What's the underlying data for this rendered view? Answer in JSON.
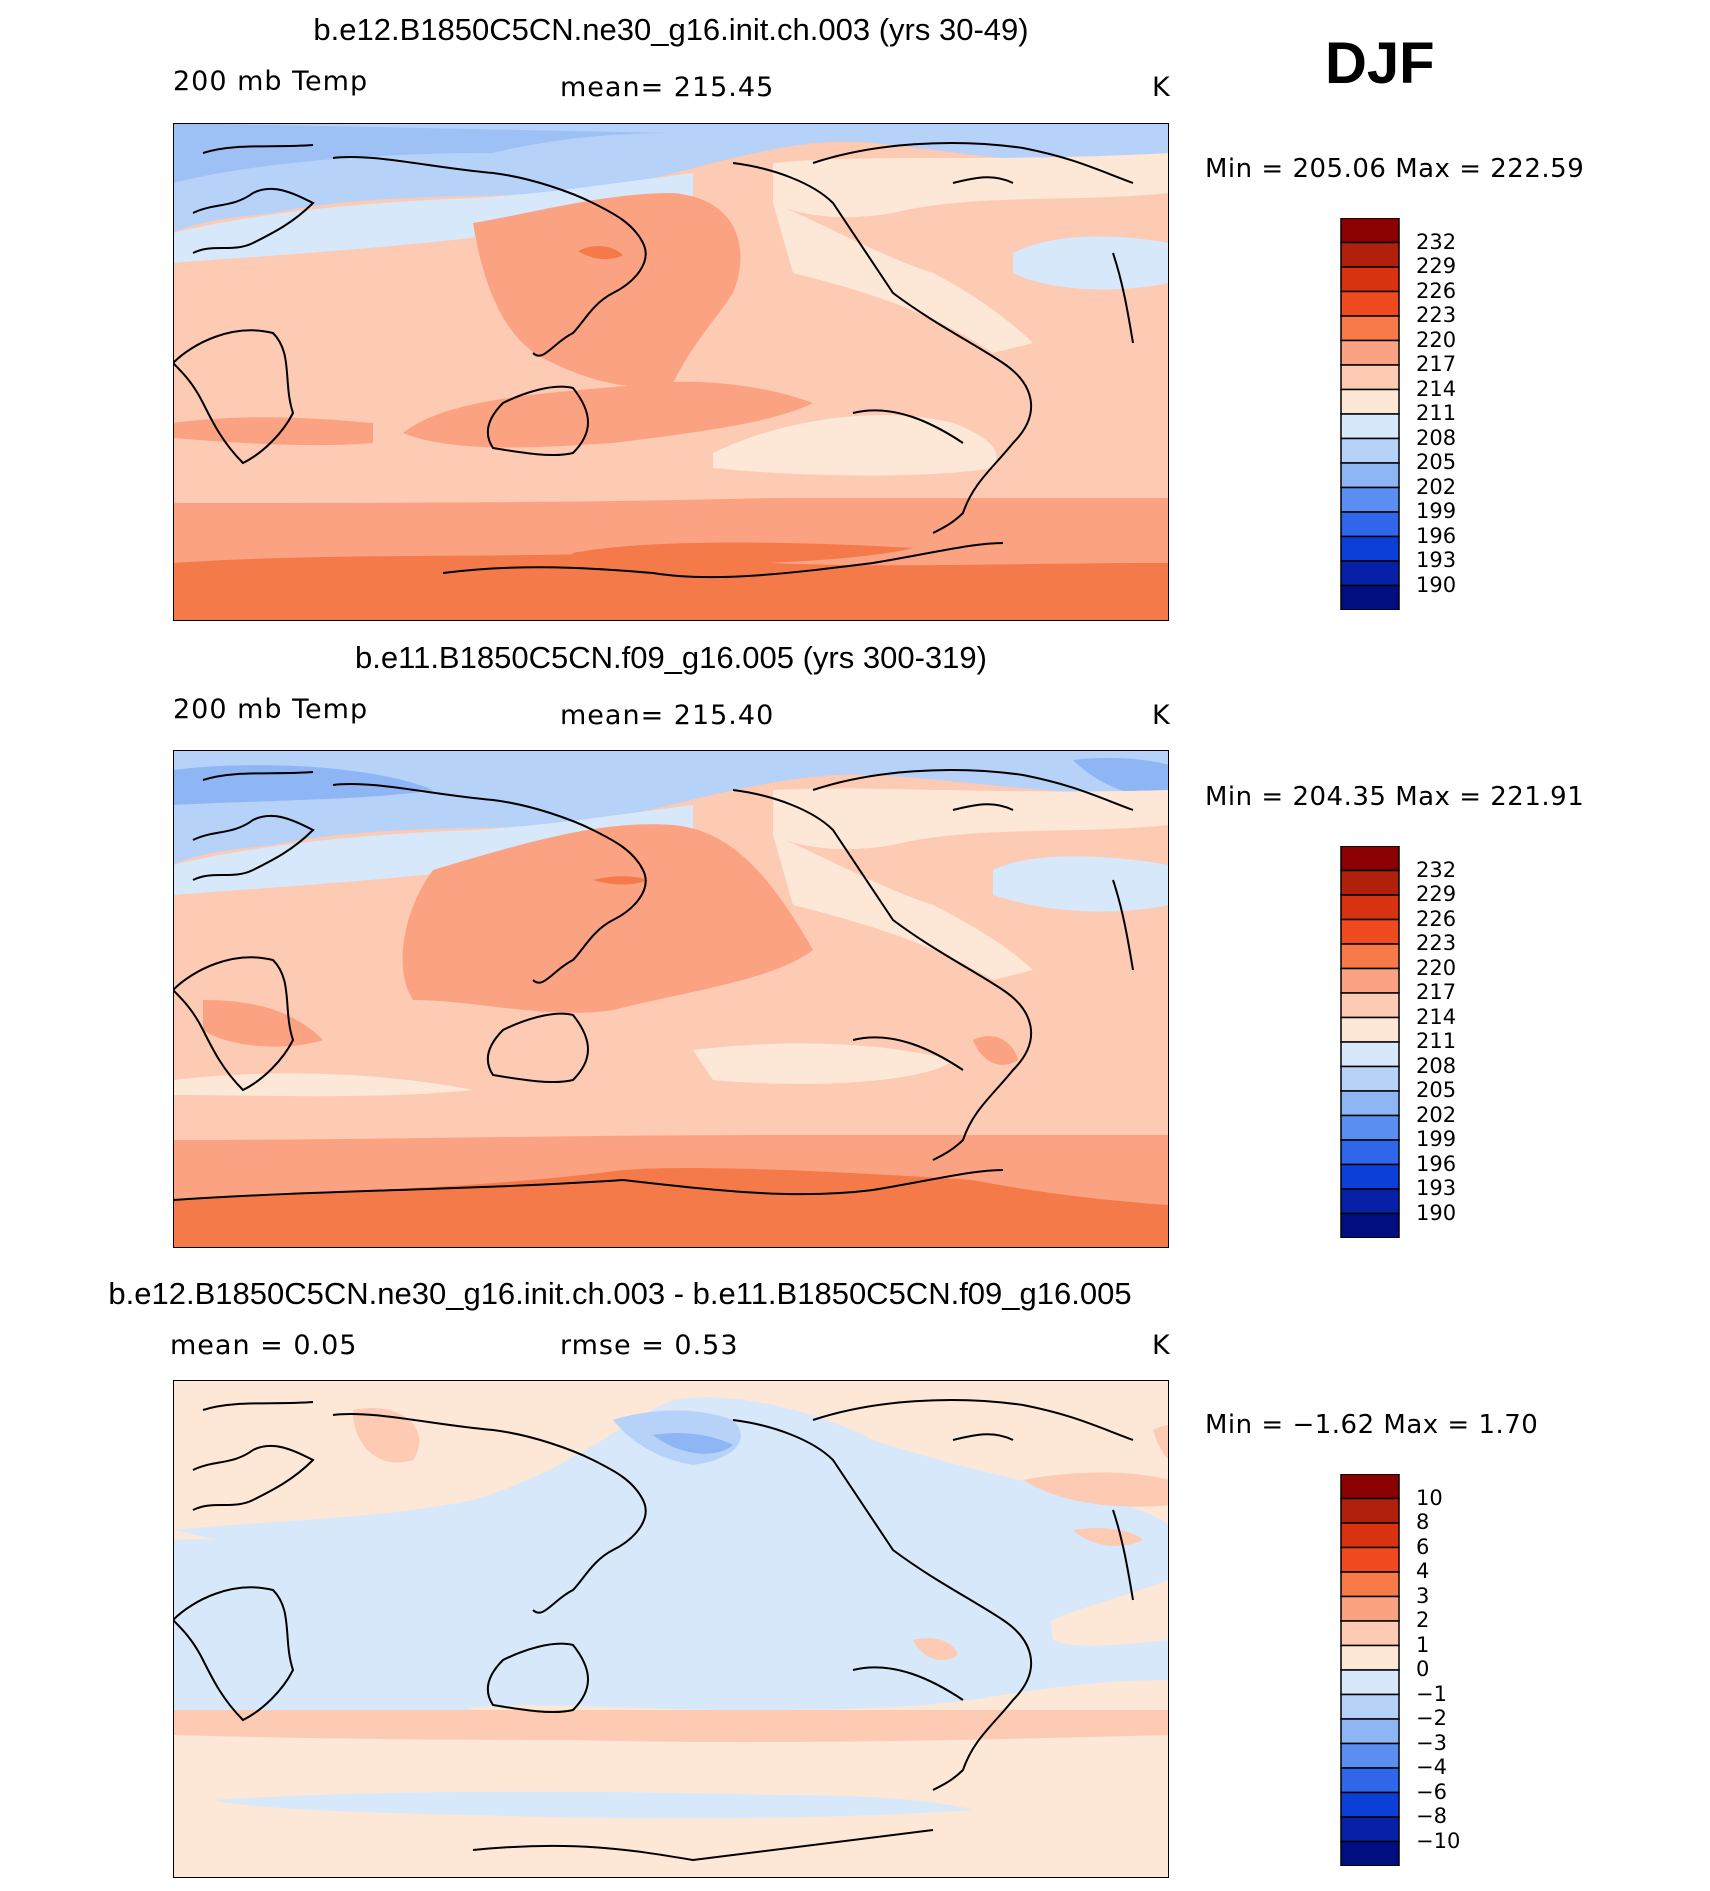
{
  "season": "DJF",
  "panels": [
    {
      "title": "b.e12.B1850C5CN.ne30_g16.init.ch.003 (yrs 30-49)",
      "left_label": "200 mb Temp",
      "center_label": "mean=  215.45",
      "right_label": "K",
      "minmax": "Min  =  205.06  Max  =  222.59"
    },
    {
      "title": "b.e11.B1850C5CN.f09_g16.005 (yrs 300-319)",
      "left_label": "200 mb Temp",
      "center_label": "mean=  215.40",
      "right_label": "K",
      "minmax": "Min  =  204.35  Max  =  221.91"
    },
    {
      "title": "b.e12.B1850C5CN.ne30_g16.init.ch.003 - b.e11.B1850C5CN.f09_g16.005",
      "left_label": "mean  =     0.05",
      "center_label": "rmse  =     0.53",
      "right_label": "K",
      "minmax": "Min  =    −1.62  Max  =      1.70"
    }
  ],
  "chart_data": [
    {
      "type": "heatmap",
      "title": "b.e12.B1850C5CN.ne30_g16.init.ch.003 (yrs 30-49)",
      "variable": "200 mb Temp",
      "units": "K",
      "mean": 215.45,
      "min": 205.06,
      "max": 222.59,
      "colorbar_levels": [
        "232",
        "229",
        "226",
        "223",
        "220",
        "217",
        "214",
        "211",
        "208",
        "205",
        "202",
        "199",
        "196",
        "193",
        "190"
      ],
      "colorbar_colors": [
        "#8b0000",
        "#b0200a",
        "#d93210",
        "#f04a20",
        "#f77a48",
        "#fba283",
        "#fdcab3",
        "#fde7d6",
        "#d6e8fa",
        "#b6d2f8",
        "#8eb6f4",
        "#5a8ef0",
        "#2f66ea",
        "#0a3fd8",
        "#0720a8",
        "#000e80"
      ]
    },
    {
      "type": "heatmap",
      "title": "b.e11.B1850C5CN.f09_g16.005 (yrs 300-319)",
      "variable": "200 mb Temp",
      "units": "K",
      "mean": 215.4,
      "min": 204.35,
      "max": 221.91,
      "colorbar_levels": [
        "232",
        "229",
        "226",
        "223",
        "220",
        "217",
        "214",
        "211",
        "208",
        "205",
        "202",
        "199",
        "196",
        "193",
        "190"
      ],
      "colorbar_colors": [
        "#8b0000",
        "#b0200a",
        "#d93210",
        "#f04a20",
        "#f77a48",
        "#fba283",
        "#fdcab3",
        "#fde7d6",
        "#d6e8fa",
        "#b6d2f8",
        "#8eb6f4",
        "#5a8ef0",
        "#2f66ea",
        "#0a3fd8",
        "#0720a8",
        "#000e80"
      ]
    },
    {
      "type": "heatmap",
      "title": "b.e12.B1850C5CN.ne30_g16.init.ch.003 - b.e11.B1850C5CN.f09_g16.005",
      "variable": "difference",
      "units": "K",
      "mean": 0.05,
      "rmse": 0.53,
      "min": -1.62,
      "max": 1.7,
      "colorbar_levels": [
        "10",
        "8",
        "6",
        "4",
        "3",
        "2",
        "1",
        "0",
        "−1",
        "−2",
        "−3",
        "−4",
        "−6",
        "−8",
        "−10"
      ],
      "colorbar_colors": [
        "#8b0000",
        "#b0200a",
        "#d93210",
        "#f04a20",
        "#f77a48",
        "#fba283",
        "#fdcab3",
        "#fde7d6",
        "#d6e8fa",
        "#b6d2f8",
        "#8eb6f4",
        "#5a8ef0",
        "#2f66ea",
        "#0a3fd8",
        "#0720a8",
        "#000e80"
      ]
    }
  ],
  "palette": {
    "deep_warm": "#f47a4a",
    "warm": "#fba283",
    "light_warm": "#fdcab3",
    "pale_warm": "#fde7d6",
    "pale_cool": "#d6e8fa",
    "cool": "#b6d2f8",
    "mid_cool": "#8eb6f4",
    "land_line": "#000000"
  }
}
